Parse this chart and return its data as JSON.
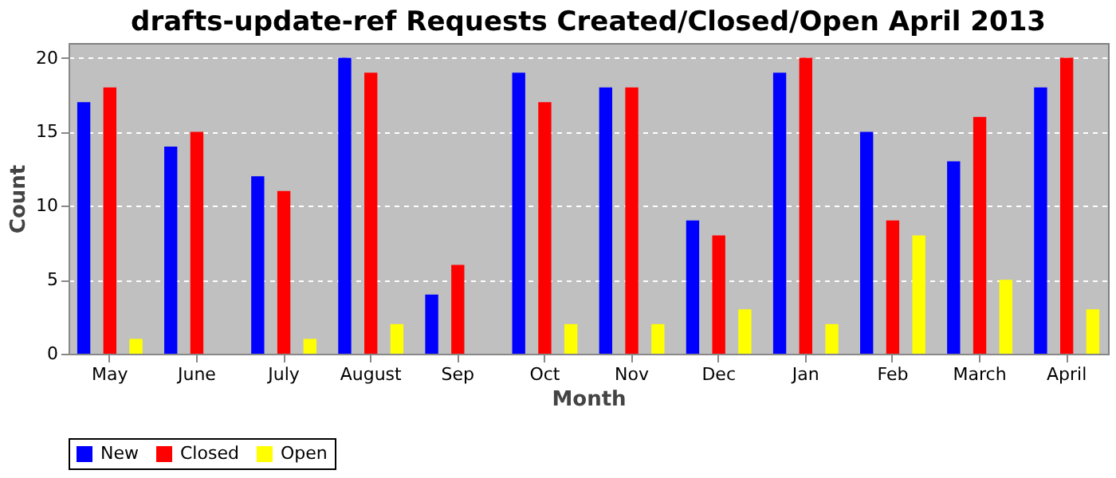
{
  "chart_data": {
    "type": "bar",
    "title": "drafts-update-ref Requests Created/Closed/Open April 2013",
    "xlabel": "Month",
    "ylabel": "Count",
    "categories": [
      "May",
      "June",
      "July",
      "August",
      "Sep",
      "Oct",
      "Nov",
      "Dec",
      "Jan",
      "Feb",
      "March",
      "April"
    ],
    "series": [
      {
        "name": "New",
        "color": "#0000ff",
        "values": [
          17,
          14,
          12,
          20,
          4,
          19,
          18,
          9,
          19,
          15,
          13,
          18
        ]
      },
      {
        "name": "Closed",
        "color": "#ff0000",
        "values": [
          18,
          15,
          11,
          19,
          6,
          17,
          18,
          8,
          20,
          9,
          16,
          20
        ]
      },
      {
        "name": "Open",
        "color": "#ffff00",
        "values": [
          1,
          0,
          1,
          2,
          0,
          2,
          2,
          3,
          2,
          8,
          5,
          3
        ]
      }
    ],
    "ylim": [
      0,
      21
    ],
    "yticks": [
      0,
      5,
      10,
      15,
      20
    ],
    "grid": "y",
    "legend": "bottom"
  }
}
